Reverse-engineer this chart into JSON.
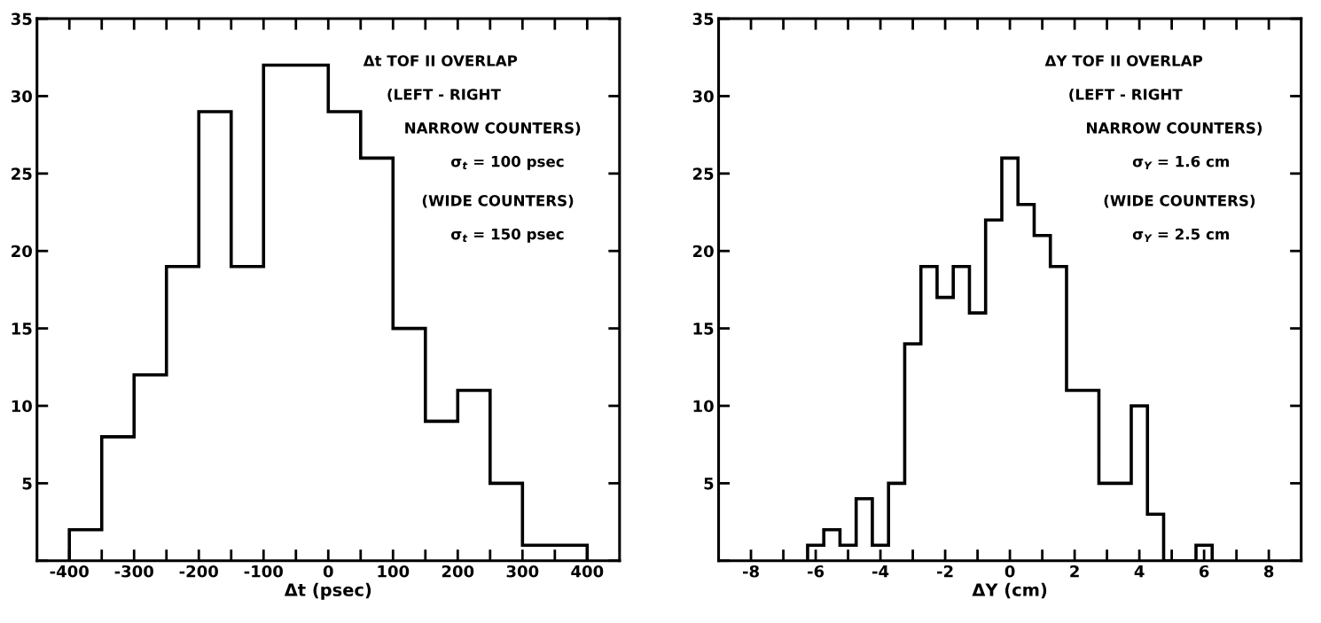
{
  "chart_data": [
    {
      "type": "histogram",
      "xlabel": "Δt (psec)",
      "color": "#000000",
      "bins": [
        -400,
        -350,
        -300,
        -250,
        -200,
        -150,
        -100,
        -50,
        0,
        50,
        100,
        150,
        200,
        250,
        300,
        350,
        400
      ],
      "values": [
        2,
        8,
        12,
        19,
        29,
        19,
        32,
        32,
        29,
        26,
        15,
        9,
        11,
        5,
        1,
        1
      ],
      "xlim": [
        -450,
        450
      ],
      "xticks": [
        -400,
        {
          "value": -350,
          "label": null
        },
        -300,
        {
          "value": -250,
          "label": null
        },
        -200,
        {
          "value": -150,
          "label": null
        },
        -100,
        {
          "value": -50,
          "label": null
        },
        0,
        {
          "value": 50,
          "label": null
        },
        100,
        {
          "value": 150,
          "label": null
        },
        200,
        {
          "value": 250,
          "label": null
        },
        300,
        {
          "value": 350,
          "label": null
        },
        400
      ],
      "ylim": [
        0,
        35
      ],
      "yticks": [
        {
          "value": 0,
          "label": null
        },
        5,
        10,
        15,
        20,
        25,
        30,
        35
      ],
      "grid": false,
      "annotations": [
        "Δt TOF II OVERLAP",
        "(LEFT - RIGHT",
        "NARROW COUNTERS)",
        "σ$_{t}$ = 100 psec",
        "(WIDE COUNTERS)",
        "σ$_{t}$ = 150 psec"
      ]
    },
    {
      "type": "histogram",
      "xlabel": "ΔY (cm)",
      "color": "#000000",
      "bins": [
        -6.25,
        -5.75,
        -5.25,
        -4.75,
        -4.25,
        -3.75,
        -3.25,
        -2.75,
        -2.25,
        -1.75,
        -1.25,
        -0.75,
        -0.25,
        0.25,
        0.75,
        1.25,
        1.75,
        2.25,
        2.75,
        3.25,
        3.75,
        4.25,
        4.75,
        5.25,
        5.75,
        6.25
      ],
      "values": [
        1,
        2,
        1,
        4,
        1,
        5,
        14,
        19,
        17,
        19,
        16,
        22,
        26,
        23,
        21,
        19,
        11,
        11,
        5,
        5,
        10,
        3,
        0,
        0,
        1
      ],
      "xlim": [
        -9,
        9
      ],
      "xticks": [
        -8,
        {
          "value": -7,
          "label": null
        },
        -6,
        {
          "value": -5,
          "label": null
        },
        -4,
        {
          "value": -3,
          "label": null
        },
        -2,
        {
          "value": -1,
          "label": null
        },
        0,
        {
          "value": 1,
          "label": null
        },
        2,
        {
          "value": 3,
          "label": null
        },
        4,
        {
          "value": 5,
          "label": null
        },
        6,
        {
          "value": 7,
          "label": null
        },
        8
      ],
      "ylim": [
        0,
        35
      ],
      "yticks": [
        {
          "value": 0,
          "label": null
        },
        5,
        10,
        15,
        20,
        25,
        30,
        35
      ],
      "grid": false,
      "annotations": [
        "ΔY TOF II OVERLAP",
        "(LEFT - RIGHT",
        "NARROW COUNTERS)",
        "σ$_{Y}$ = 1.6 cm",
        "(WIDE COUNTERS)",
        "σ$_{Y}$ = 2.5 cm"
      ]
    }
  ]
}
